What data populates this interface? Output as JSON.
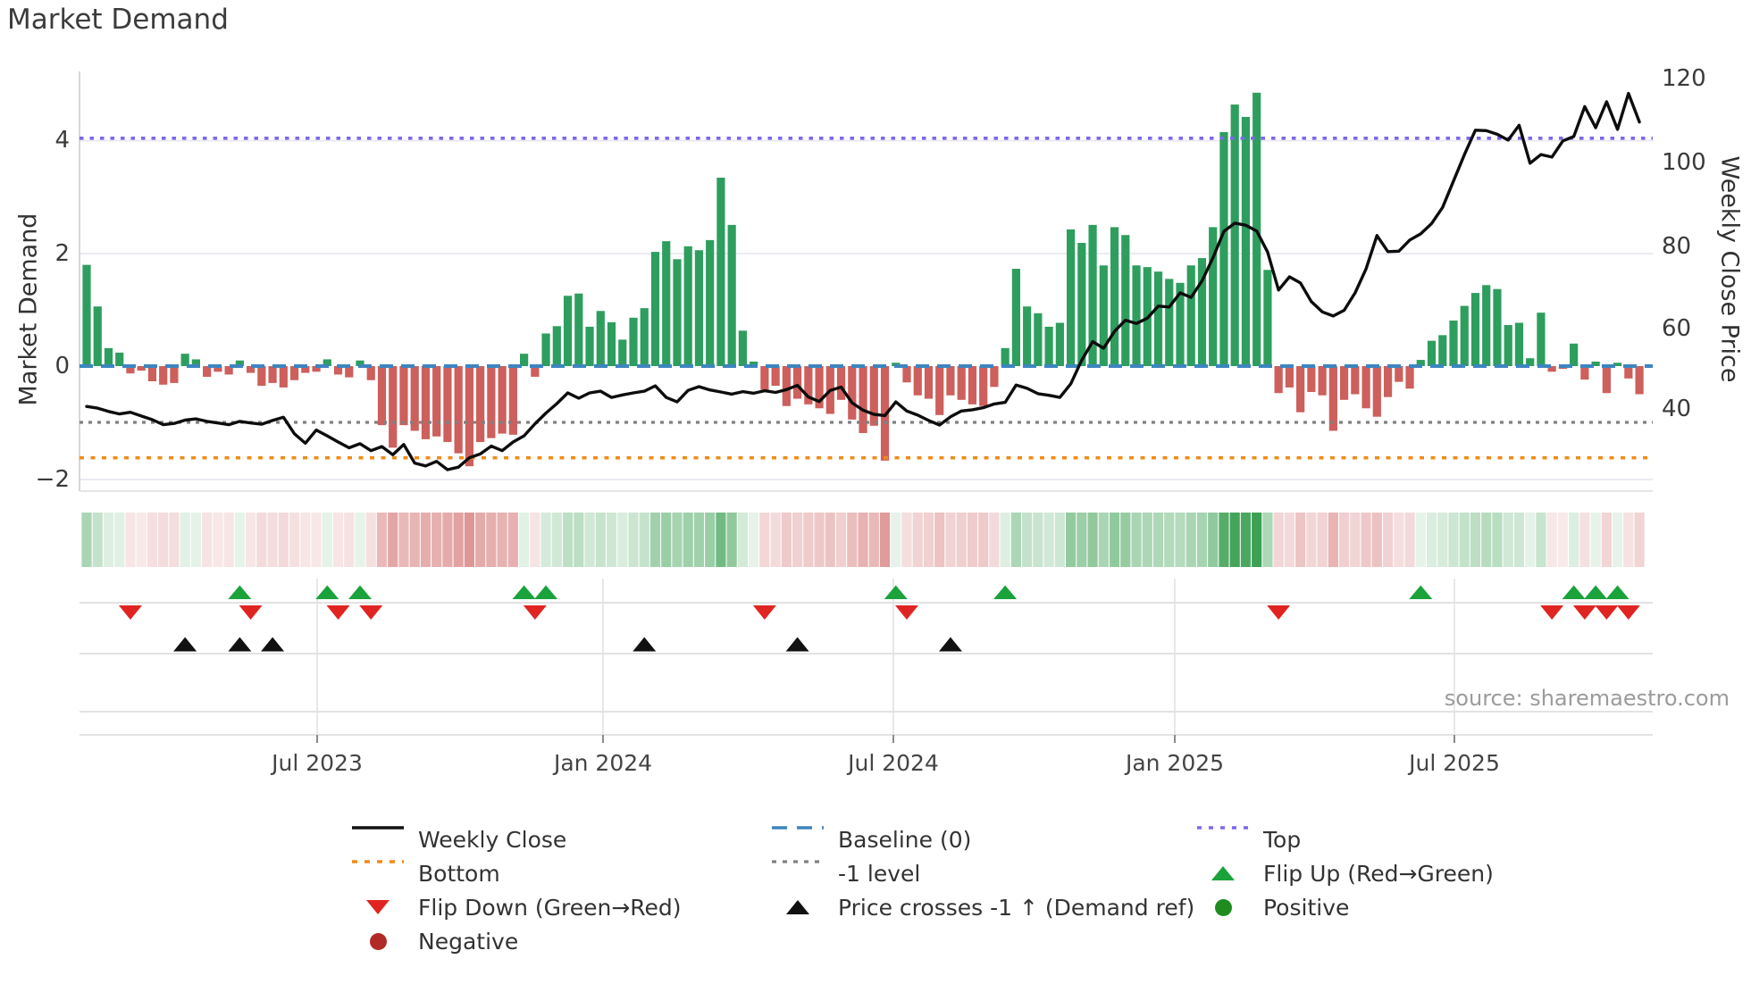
{
  "title": "Market Demand",
  "source": "source: sharemaestro.com",
  "axes": {
    "left": {
      "label": "Market Demand",
      "ticks": [
        {
          "label": "4"
        },
        {
          "label": "2"
        },
        {
          "label": "0"
        },
        {
          "label": "−2"
        }
      ]
    },
    "right": {
      "label": "Weekly Close Price",
      "ticks": [
        {
          "label": "120"
        },
        {
          "label": "100"
        },
        {
          "label": "80"
        },
        {
          "label": "60"
        },
        {
          "label": "40"
        }
      ]
    },
    "x": {
      "ticks": [
        {
          "label": "Jul 2023"
        },
        {
          "label": "Jan 2024"
        },
        {
          "label": "Jul 2024"
        },
        {
          "label": "Jan 2025"
        },
        {
          "label": "Jul 2025"
        }
      ]
    }
  },
  "colors": {
    "bar_positive": "#2e9e5e",
    "bar_negative": "#cd5f5c",
    "price_line": "#0d0d0d",
    "baseline": "#3c85c0",
    "top_line": "#7b68ee",
    "bottom_line": "#f08c18",
    "minus_one_line": "#808080",
    "flip_up_marker": "#1aa23b",
    "flip_down_marker": "#e02421",
    "price_cross_marker": "#111111",
    "positive_dot": "#1e8c1e",
    "negative_dot": "#b02a28",
    "heat_green": "40,150,65",
    "heat_red": "205,95,95"
  },
  "legend": {
    "items": [
      {
        "label": "Weekly Close"
      },
      {
        "label": "Baseline (0)"
      },
      {
        "label": "Top"
      },
      {
        "label": "Bottom"
      },
      {
        "label": "-1 level"
      },
      {
        "label": "Flip Up (Red→Green)"
      },
      {
        "label": "Flip Down (Green→Red)"
      },
      {
        "label": "Price crosses -1 ↑ (Demand ref)"
      },
      {
        "label": "Positive"
      },
      {
        "label": "Negative"
      }
    ]
  },
  "chart_data": {
    "type": "bar",
    "subtype": "combo-bar-line-heatmap",
    "x_unit": "week",
    "weeks": 143,
    "tick_labels": [
      "Jul 2023",
      "Jan 2024",
      "Jul 2024",
      "Jan 2025",
      "Jul 2025"
    ],
    "left_axis": {
      "label": "Market Demand",
      "ylim": [
        -2.25,
        5.2
      ],
      "ticks": [
        4,
        2,
        0,
        -2
      ]
    },
    "right_axis": {
      "label": "Weekly Close Price",
      "ylim": [
        20,
        126
      ],
      "ticks": [
        40,
        60,
        80,
        100,
        120
      ]
    },
    "ref_lines": {
      "baseline": 0,
      "top": 4.05,
      "minus_one": -1,
      "bottom": -1.63
    },
    "series": [
      {
        "name": "Market Demand",
        "type": "bar",
        "axis": "left",
        "values": [
          1.8,
          1.06,
          0.32,
          0.24,
          -0.13,
          -0.08,
          -0.27,
          -0.33,
          -0.3,
          0.22,
          0.12,
          -0.19,
          -0.1,
          -0.15,
          0.1,
          -0.12,
          -0.35,
          -0.3,
          -0.38,
          -0.25,
          -0.12,
          -0.1,
          0.12,
          -0.15,
          -0.2,
          0.1,
          -0.25,
          -1.05,
          -1.45,
          -1.05,
          -1.15,
          -1.3,
          -1.25,
          -1.35,
          -1.55,
          -1.78,
          -1.35,
          -1.28,
          -1.2,
          -1.22,
          0.22,
          -0.19,
          0.58,
          0.71,
          1.25,
          1.29,
          0.7,
          0.98,
          0.78,
          0.47,
          0.86,
          1.03,
          2.03,
          2.22,
          1.9,
          2.13,
          2.06,
          2.24,
          3.35,
          2.51,
          0.63,
          0.08,
          -0.42,
          -0.35,
          -0.71,
          -0.58,
          -0.68,
          -0.75,
          -0.85,
          -0.6,
          -0.95,
          -1.19,
          -1.06,
          -1.68,
          0.06,
          -0.29,
          -0.52,
          -0.58,
          -0.87,
          -0.52,
          -0.6,
          -0.68,
          -0.71,
          -0.37,
          0.32,
          1.73,
          1.06,
          0.94,
          0.7,
          0.77,
          2.43,
          2.19,
          2.51,
          1.79,
          2.47,
          2.33,
          1.79,
          1.76,
          1.68,
          1.55,
          1.48,
          1.79,
          1.92,
          2.47,
          4.16,
          4.65,
          4.43,
          4.86,
          1.71,
          -0.48,
          -0.38,
          -0.82,
          -0.46,
          -0.52,
          -1.15,
          -0.6,
          -0.5,
          -0.75,
          -0.9,
          -0.55,
          -0.28,
          -0.4,
          0.11,
          0.45,
          0.55,
          0.81,
          1.07,
          1.3,
          1.44,
          1.37,
          0.73,
          0.77,
          0.14,
          0.95,
          -0.1,
          -0.05,
          0.4,
          -0.24,
          0.08,
          -0.48,
          0.06,
          -0.22,
          -0.5
        ]
      },
      {
        "name": "Weekly Close",
        "type": "line",
        "axis": "right",
        "values": [
          40.6,
          40.2,
          39.4,
          38.8,
          39.2,
          38.3,
          37.4,
          36.2,
          36.5,
          37.3,
          37.6,
          37.0,
          36.6,
          36.2,
          37.0,
          36.6,
          36.3,
          37.2,
          38.0,
          34.0,
          31.7,
          34.9,
          33.5,
          32.0,
          30.6,
          31.6,
          29.9,
          30.9,
          28.9,
          31.4,
          26.9,
          26.2,
          27.3,
          25.3,
          25.9,
          28.2,
          29.1,
          31.0,
          29.9,
          32.0,
          33.5,
          36.4,
          39.0,
          41.3,
          43.9,
          42.6,
          43.9,
          44.3,
          42.8,
          43.4,
          43.9,
          44.3,
          45.6,
          42.8,
          41.7,
          44.5,
          45.4,
          44.6,
          44.1,
          43.6,
          44.2,
          43.8,
          44.4,
          44.0,
          44.7,
          45.7,
          42.9,
          41.8,
          44.5,
          45.3,
          41.5,
          39.7,
          38.7,
          38.4,
          41.7,
          39.5,
          38.5,
          37.2,
          36.1,
          38.1,
          39.5,
          39.8,
          40.3,
          41.2,
          41.6,
          45.8,
          45.0,
          43.7,
          43.3,
          42.8,
          46.1,
          51.8,
          56.3,
          54.7,
          58.8,
          61.5,
          60.7,
          62.0,
          64.9,
          64.7,
          68.1,
          67.0,
          71.0,
          76.6,
          83.0,
          85.0,
          84.5,
          83.1,
          78.0,
          68.8,
          72.0,
          70.5,
          66.0,
          63.5,
          62.5,
          63.9,
          68.1,
          73.9,
          82.0,
          78.1,
          78.2,
          80.9,
          82.4,
          84.9,
          88.8,
          95.2,
          101.6,
          107.5,
          107.4,
          106.5,
          105.1,
          108.7,
          99.5,
          101.6,
          101.0,
          104.9,
          106.0,
          113.2,
          108.1,
          114.4,
          107.7,
          116.4,
          109.5
        ]
      }
    ],
    "markers": {
      "flip_up_weeks": [
        14,
        22,
        25,
        40,
        42,
        74,
        84,
        122,
        136,
        138,
        140
      ],
      "flip_down_weeks": [
        4,
        15,
        23,
        26,
        41,
        62,
        75,
        109,
        134,
        137,
        139,
        141
      ],
      "price_cross_up_weeks": [
        9,
        14,
        17,
        51,
        65,
        79
      ]
    },
    "heatmap": "derived from bar values: green intensity for positive weeks, red intensity for negative weeks",
    "legend_position": "bottom",
    "grid": true
  }
}
